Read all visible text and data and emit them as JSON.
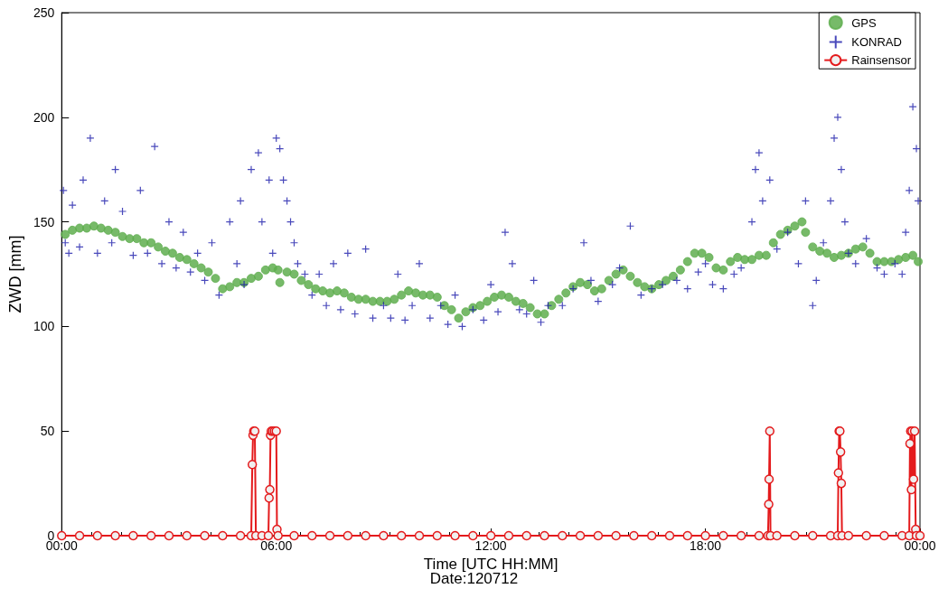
{
  "chart_data": {
    "type": "scatter",
    "xlabel": "Time [UTC HH:MM]",
    "ylabel": "ZWD [mm]",
    "annotations": [
      "Date:120712"
    ],
    "xlim": [
      0,
      24
    ],
    "xticks": [
      {
        "value": 0,
        "label": "00:00"
      },
      {
        "value": 6,
        "label": "06:00"
      },
      {
        "value": 12,
        "label": "12:00"
      },
      {
        "value": 18,
        "label": "18:00"
      },
      {
        "value": 24,
        "label": "00:00"
      }
    ],
    "ylim": [
      0,
      250
    ],
    "yticks": [
      0,
      50,
      100,
      150,
      200,
      250
    ],
    "grid": false,
    "legend": "top right",
    "series": [
      {
        "name": "GPS",
        "marker": "circle",
        "color": "#5fae4f",
        "x": [
          0.1,
          0.3,
          0.5,
          0.7,
          0.9,
          1.1,
          1.3,
          1.5,
          1.7,
          1.9,
          2.1,
          2.3,
          2.5,
          2.7,
          2.9,
          3.1,
          3.3,
          3.5,
          3.7,
          3.9,
          4.1,
          4.3,
          4.5,
          4.7,
          4.9,
          5.1,
          5.3,
          5.5,
          5.7,
          5.9,
          6.05,
          6.1,
          6.3,
          6.5,
          6.7,
          6.9,
          7.1,
          7.3,
          7.5,
          7.7,
          7.9,
          8.1,
          8.3,
          8.5,
          8.7,
          8.9,
          9.1,
          9.3,
          9.5,
          9.7,
          9.9,
          10.1,
          10.3,
          10.5,
          10.7,
          10.9,
          11.1,
          11.3,
          11.5,
          11.7,
          11.9,
          12.1,
          12.3,
          12.5,
          12.7,
          12.9,
          13.1,
          13.3,
          13.5,
          13.7,
          13.9,
          14.1,
          14.3,
          14.5,
          14.7,
          14.9,
          15.1,
          15.3,
          15.5,
          15.7,
          15.9,
          16.1,
          16.3,
          16.5,
          16.7,
          16.9,
          17.1,
          17.3,
          17.5,
          17.7,
          17.9,
          18.1,
          18.3,
          18.5,
          18.7,
          18.9,
          19.1,
          19.3,
          19.5,
          19.7,
          19.9,
          20.1,
          20.3,
          20.5,
          20.7,
          20.8,
          21.0,
          21.2,
          21.4,
          21.6,
          21.8,
          22.0,
          22.2,
          22.4,
          22.6,
          22.8,
          23.0,
          23.2,
          23.4,
          23.6,
          23.8,
          23.95
        ],
        "values": [
          144,
          146,
          147,
          147,
          148,
          147,
          146,
          145,
          143,
          142,
          142,
          140,
          140,
          138,
          136,
          135,
          133,
          132,
          130,
          128,
          126,
          123,
          118,
          119,
          121,
          121,
          123,
          124,
          127,
          128,
          127,
          121,
          126,
          125,
          122,
          120,
          118,
          117,
          116,
          117,
          116,
          114,
          113,
          113,
          112,
          112,
          112,
          113,
          115,
          117,
          116,
          115,
          115,
          114,
          110,
          108,
          104,
          107,
          109,
          110,
          112,
          114,
          115,
          114,
          112,
          111,
          109,
          106,
          106,
          110,
          113,
          116,
          119,
          121,
          120,
          117,
          118,
          122,
          125,
          127,
          124,
          121,
          119,
          118,
          120,
          122,
          124,
          127,
          131,
          135,
          135,
          133,
          128,
          127,
          131,
          133,
          132,
          132,
          134,
          134,
          140,
          144,
          146,
          148,
          150,
          145,
          138,
          136,
          135,
          133,
          134,
          135,
          137,
          138,
          135,
          131,
          131,
          131,
          132,
          133,
          134,
          131
        ]
      },
      {
        "name": "KONRAD",
        "marker": "cross",
        "color": "#1c1caa",
        "x": [
          0.05,
          0.1,
          0.2,
          0.3,
          0.5,
          0.6,
          0.8,
          1.0,
          1.2,
          1.4,
          1.5,
          1.7,
          2.0,
          2.2,
          2.4,
          2.6,
          2.8,
          3.0,
          3.2,
          3.4,
          3.6,
          3.8,
          4.0,
          4.2,
          4.4,
          4.7,
          4.9,
          5.0,
          5.1,
          5.3,
          5.5,
          5.6,
          5.8,
          5.9,
          6.0,
          6.1,
          6.2,
          6.3,
          6.4,
          6.5,
          6.6,
          6.8,
          7.0,
          7.2,
          7.4,
          7.6,
          7.8,
          8.0,
          8.2,
          8.5,
          8.7,
          9.0,
          9.2,
          9.4,
          9.6,
          9.8,
          10.0,
          10.3,
          10.6,
          10.8,
          11.0,
          11.2,
          11.5,
          11.8,
          12.0,
          12.2,
          12.4,
          12.6,
          12.8,
          13.0,
          13.2,
          13.4,
          13.6,
          14.0,
          14.3,
          14.6,
          14.8,
          15.0,
          15.4,
          15.6,
          15.9,
          16.2,
          16.5,
          16.8,
          17.2,
          17.5,
          17.8,
          18.0,
          18.2,
          18.5,
          18.8,
          19.0,
          19.3,
          19.4,
          19.5,
          19.6,
          19.8,
          20.0,
          20.3,
          20.6,
          20.8,
          21.0,
          21.1,
          21.3,
          21.5,
          21.6,
          21.7,
          21.8,
          21.9,
          22.0,
          22.2,
          22.5,
          22.8,
          23.0,
          23.3,
          23.5,
          23.6,
          23.7,
          23.8,
          23.9,
          23.95
        ],
        "values": [
          165,
          140,
          135,
          158,
          138,
          170,
          190,
          135,
          160,
          140,
          175,
          155,
          134,
          165,
          135,
          186,
          130,
          150,
          128,
          145,
          126,
          135,
          122,
          140,
          115,
          150,
          130,
          160,
          120,
          175,
          183,
          150,
          170,
          135,
          190,
          185,
          170,
          160,
          150,
          140,
          130,
          125,
          115,
          125,
          110,
          130,
          108,
          135,
          106,
          137,
          104,
          110,
          104,
          125,
          103,
          110,
          130,
          104,
          110,
          101,
          115,
          100,
          108,
          103,
          120,
          107,
          145,
          130,
          108,
          106,
          122,
          102,
          110,
          110,
          118,
          140,
          122,
          112,
          120,
          128,
          148,
          115,
          118,
          120,
          122,
          118,
          126,
          130,
          120,
          118,
          125,
          128,
          150,
          175,
          183,
          160,
          170,
          137,
          145,
          130,
          160,
          110,
          122,
          140,
          160,
          190,
          200,
          175,
          150,
          135,
          130,
          142,
          128,
          125,
          130,
          125,
          145,
          165,
          205,
          185,
          160
        ]
      },
      {
        "name": "Rainsensor",
        "type": "line",
        "marker": "circle",
        "color": "#e41a1c",
        "x": [
          0,
          0.5,
          1,
          1.5,
          2,
          2.5,
          3,
          3.5,
          4,
          4.5,
          5,
          5.3,
          5.33,
          5.35,
          5.37,
          5.4,
          5.43,
          5.6,
          5.78,
          5.8,
          5.82,
          5.84,
          5.86,
          5.9,
          5.95,
          6.0,
          6.02,
          6.05,
          6.5,
          7,
          7.5,
          8,
          8.5,
          9,
          9.5,
          10,
          10.5,
          11,
          11.5,
          12,
          12.5,
          13,
          13.5,
          14,
          14.5,
          15,
          15.5,
          16,
          16.5,
          17,
          17.5,
          18,
          18.5,
          19,
          19.5,
          19.75,
          19.77,
          19.78,
          19.8,
          19.82,
          20,
          20.5,
          21,
          21.5,
          21.7,
          21.72,
          21.74,
          21.76,
          21.78,
          21.8,
          21.82,
          22,
          22.5,
          23,
          23.5,
          23.7,
          23.72,
          23.74,
          23.76,
          23.78,
          23.82,
          23.85,
          23.88,
          23.9,
          24
        ],
        "values": [
          0,
          0,
          0,
          0,
          0,
          0,
          0,
          0,
          0,
          0,
          0,
          0,
          34,
          48,
          50,
          50,
          0,
          0,
          0,
          18,
          22,
          48,
          50,
          50,
          50,
          50,
          3,
          0,
          0,
          0,
          0,
          0,
          0,
          0,
          0,
          0,
          0,
          0,
          0,
          0,
          0,
          0,
          0,
          0,
          0,
          0,
          0,
          0,
          0,
          0,
          0,
          0,
          0,
          0,
          0,
          0,
          15,
          27,
          50,
          0,
          0,
          0,
          0,
          0,
          0,
          30,
          50,
          50,
          40,
          25,
          0,
          0,
          0,
          0,
          0,
          0,
          44,
          50,
          22,
          50,
          27,
          50,
          3,
          0,
          0
        ]
      }
    ]
  }
}
